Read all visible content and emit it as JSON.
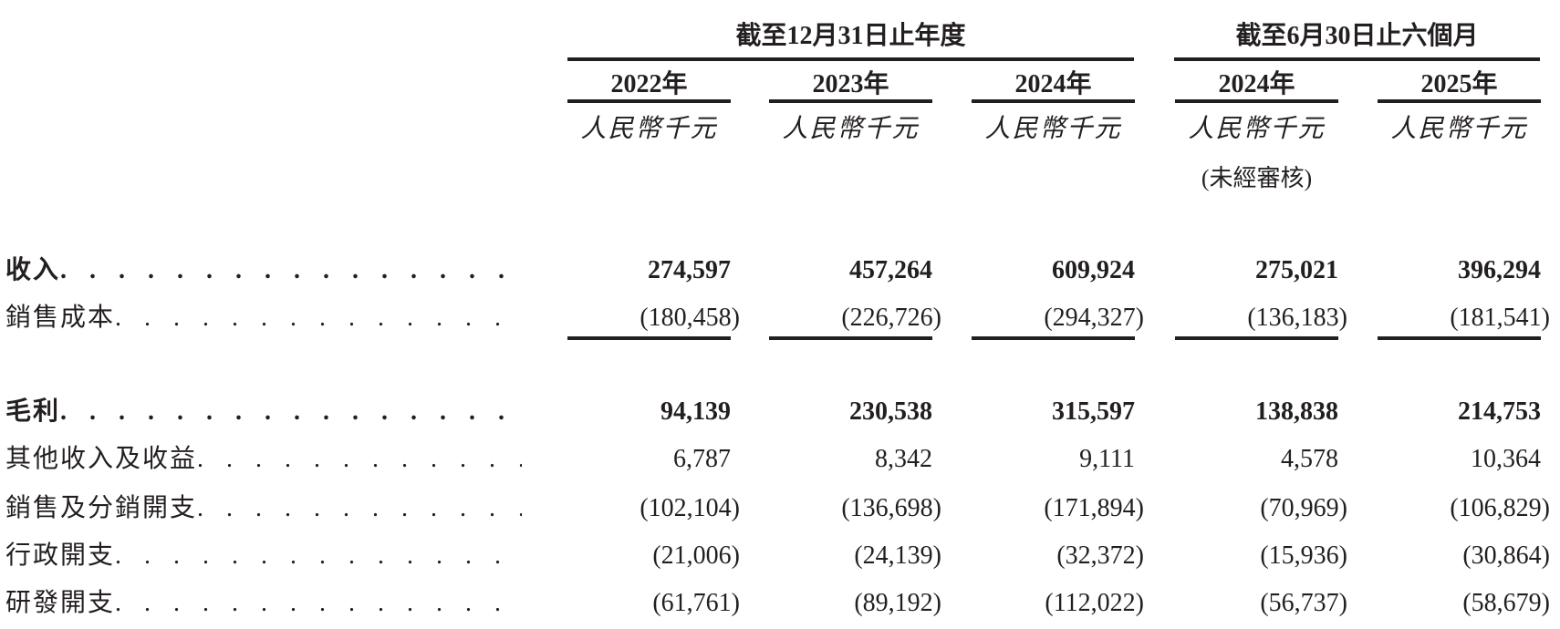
{
  "header": {
    "groups": [
      {
        "label": "截至12月31日止年度"
      },
      {
        "label": "截至6月30日止六個月"
      }
    ],
    "columns": [
      {
        "year": "2022年",
        "unit": "人民幣千元",
        "note": ""
      },
      {
        "year": "2023年",
        "unit": "人民幣千元",
        "note": ""
      },
      {
        "year": "2024年",
        "unit": "人民幣千元",
        "note": ""
      },
      {
        "year": "2024年",
        "unit": "人民幣千元",
        "note": "(未經審核)"
      },
      {
        "year": "2025年",
        "unit": "人民幣千元",
        "note": ""
      }
    ]
  },
  "rows": [
    {
      "label": "收入",
      "bold": true,
      "values": [
        "274,597",
        "457,264",
        "609,924",
        "275,021",
        "396,294"
      ]
    },
    {
      "label": "銷售成本",
      "bold": false,
      "values": [
        "(180,458)",
        "(226,726)",
        "(294,327)",
        "(136,183)",
        "(181,541)"
      ]
    },
    {
      "label": "毛利",
      "bold": true,
      "values": [
        "94,139",
        "230,538",
        "315,597",
        "138,838",
        "214,753"
      ]
    },
    {
      "label": "其他收入及收益",
      "bold": false,
      "values": [
        "6,787",
        "8,342",
        "9,111",
        "4,578",
        "10,364"
      ]
    },
    {
      "label": "銷售及分銷開支",
      "bold": false,
      "values": [
        "(102,104)",
        "(136,698)",
        "(171,894)",
        "(70,969)",
        "(106,829)"
      ]
    },
    {
      "label": "行政開支",
      "bold": false,
      "values": [
        "(21,006)",
        "(24,139)",
        "(32,372)",
        "(15,936)",
        "(30,864)"
      ]
    },
    {
      "label": "研發開支",
      "bold": false,
      "values": [
        "(61,761)",
        "(89,192)",
        "(112,022)",
        "(56,737)",
        "(58,679)"
      ]
    }
  ],
  "dot_leader": ". . . . . . . . . . . . . . . . . . . . . . . . . . . . . . ."
}
